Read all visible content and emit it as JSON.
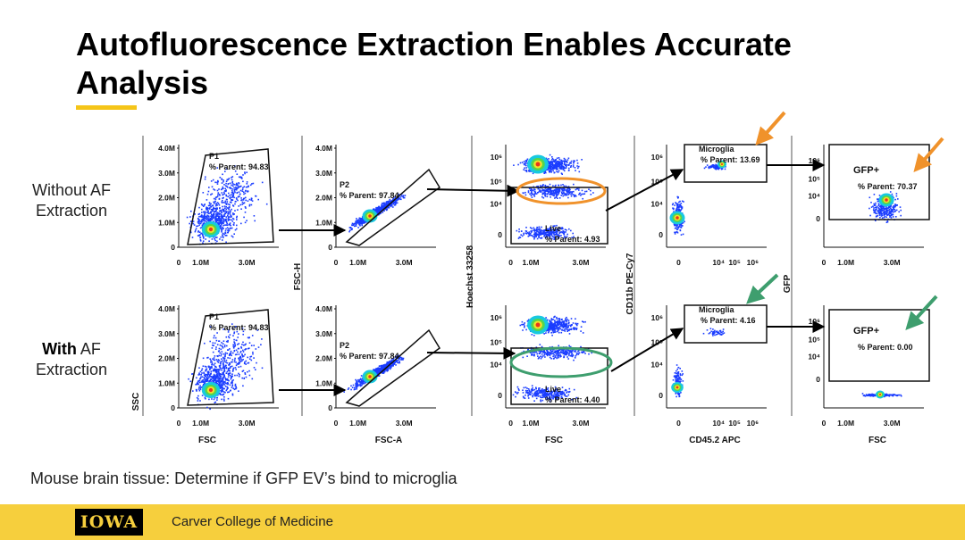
{
  "title": "Autofluorescence Extraction Enables Accurate Analysis",
  "row_labels": {
    "without": {
      "line1": "Without AF",
      "line2": "Extraction"
    },
    "with": {
      "bold": "With",
      "rest": " AF",
      "line2": "Extraction"
    }
  },
  "axis_labels": {
    "ssc": "SSC",
    "fsc": "FSC",
    "fsc_h": "FSC-H",
    "fsc_a": "FSC-A",
    "hoechst": "Hoechst 33258",
    "cd11b": "CD11b PE-Cy7",
    "cd45": "CD45.2 APC",
    "gfp": "GFP"
  },
  "ticks": {
    "lin_y": [
      "4.0M",
      "3.0M",
      "2.0M",
      "1.0M",
      "0"
    ],
    "lin_x": [
      "0",
      "1.0M",
      "3.0M"
    ],
    "log_y": [
      "10⁶",
      "10⁵",
      "10⁴",
      "0"
    ],
    "log_x": [
      "0",
      "10⁴",
      "10⁵",
      "10⁶"
    ]
  },
  "gates": {
    "p1": {
      "name": "P1",
      "pct": "% Parent: 94.83"
    },
    "p2": {
      "name": "P2",
      "pct": "% Parent: 97.84"
    },
    "live_without": {
      "name": "Live",
      "pct": "% Parent: 4.93"
    },
    "live_with": {
      "name": "Live",
      "pct": "% Parent: 4.40"
    },
    "microglia_without": {
      "name": "Microglia",
      "pct": "% Parent: 13.69"
    },
    "microglia_with": {
      "name": "Microglia",
      "pct": "% Parent: 4.16"
    },
    "gfp_without": {
      "name": "GFP+",
      "pct": "% Parent: 70.37"
    },
    "gfp_with": {
      "name": "GFP+",
      "pct": "% Parent: 0.00"
    }
  },
  "caption": "Mouse brain tissue: Determine if GFP EV’s bind to microglia",
  "footer": {
    "logo": "IOWA",
    "college": "Carver College of Medicine"
  },
  "colors": {
    "accent": "#f5c518",
    "footer": "#f6cf3d",
    "orange": "#f0922b",
    "green": "#3e9e6e",
    "dots": "#1a3cff"
  }
}
